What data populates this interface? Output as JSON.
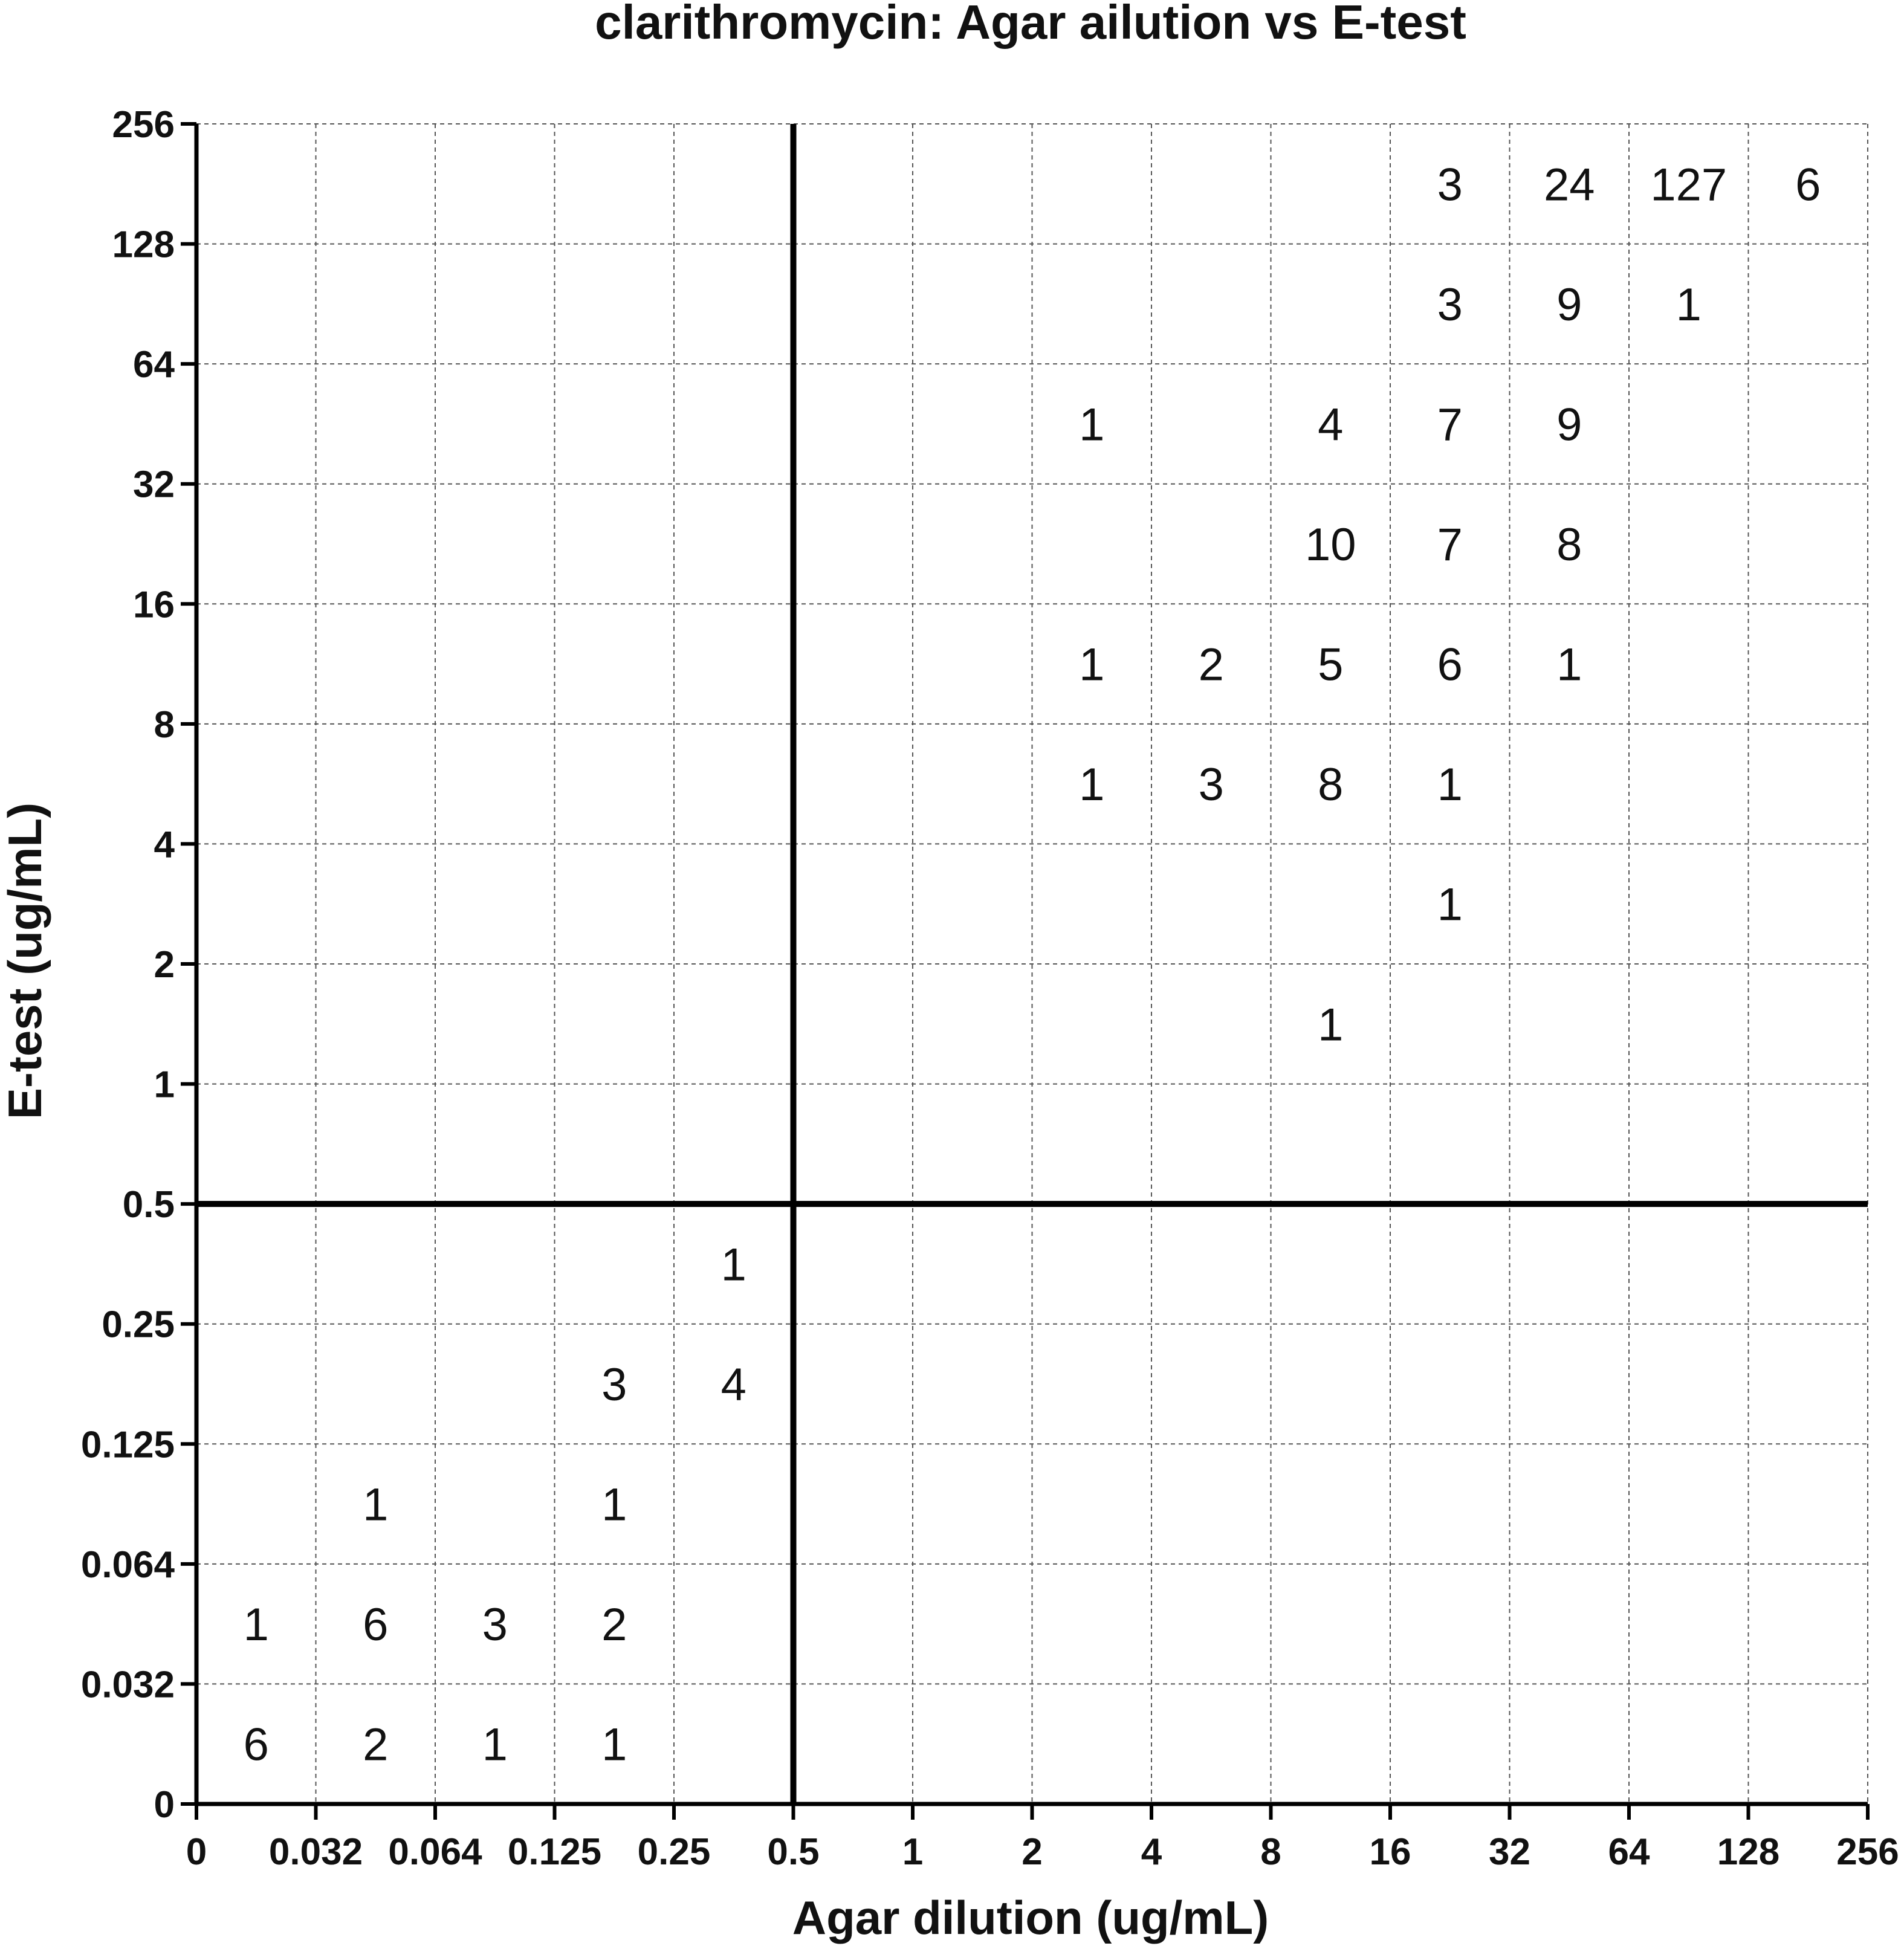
{
  "chart_data": {
    "type": "table",
    "title": "clarithromycin: Agar ailution vs E-test",
    "xlabel": "Agar dilution (ug/mL)",
    "ylabel": "E-test (ug/mL)",
    "x_ticks": [
      "0",
      "0.032",
      "0.064",
      "0.125",
      "0.25",
      "0.5",
      "1",
      "2",
      "4",
      "8",
      "16",
      "32",
      "64",
      "128",
      "256"
    ],
    "y_ticks": [
      "0",
      "0.032",
      "0.064",
      "0.125",
      "0.25",
      "0.5",
      "1",
      "2",
      "4",
      "8",
      "16",
      "32",
      "64",
      "128",
      "256"
    ],
    "grid": true,
    "breakpoint": {
      "x": "0.5",
      "y": "0.5"
    },
    "cells": [
      {
        "x_bin": [
          "0",
          "0.032"
        ],
        "y_bin": [
          "0",
          "0.032"
        ],
        "count": "6"
      },
      {
        "x_bin": [
          "0.032",
          "0.064"
        ],
        "y_bin": [
          "0",
          "0.032"
        ],
        "count": "2"
      },
      {
        "x_bin": [
          "0.064",
          "0.125"
        ],
        "y_bin": [
          "0",
          "0.032"
        ],
        "count": "1"
      },
      {
        "x_bin": [
          "0.125",
          "0.25"
        ],
        "y_bin": [
          "0",
          "0.032"
        ],
        "count": "1"
      },
      {
        "x_bin": [
          "0",
          "0.032"
        ],
        "y_bin": [
          "0.032",
          "0.064"
        ],
        "count": "1"
      },
      {
        "x_bin": [
          "0.032",
          "0.064"
        ],
        "y_bin": [
          "0.032",
          "0.064"
        ],
        "count": "6"
      },
      {
        "x_bin": [
          "0.064",
          "0.125"
        ],
        "y_bin": [
          "0.032",
          "0.064"
        ],
        "count": "3"
      },
      {
        "x_bin": [
          "0.125",
          "0.25"
        ],
        "y_bin": [
          "0.032",
          "0.064"
        ],
        "count": "2"
      },
      {
        "x_bin": [
          "0.032",
          "0.064"
        ],
        "y_bin": [
          "0.064",
          "0.125"
        ],
        "count": "1"
      },
      {
        "x_bin": [
          "0.125",
          "0.25"
        ],
        "y_bin": [
          "0.064",
          "0.125"
        ],
        "count": "1"
      },
      {
        "x_bin": [
          "0.125",
          "0.25"
        ],
        "y_bin": [
          "0.125",
          "0.25"
        ],
        "count": "3"
      },
      {
        "x_bin": [
          "0.25",
          "0.5"
        ],
        "y_bin": [
          "0.125",
          "0.25"
        ],
        "count": "4"
      },
      {
        "x_bin": [
          "0.25",
          "0.5"
        ],
        "y_bin": [
          "0.25",
          "0.5"
        ],
        "count": "1"
      },
      {
        "x_bin": [
          "8",
          "16"
        ],
        "y_bin": [
          "1",
          "2"
        ],
        "count": "1"
      },
      {
        "x_bin": [
          "16",
          "32"
        ],
        "y_bin": [
          "2",
          "4"
        ],
        "count": "1"
      },
      {
        "x_bin": [
          "2",
          "4"
        ],
        "y_bin": [
          "4",
          "8"
        ],
        "count": "1"
      },
      {
        "x_bin": [
          "4",
          "8"
        ],
        "y_bin": [
          "4",
          "8"
        ],
        "count": "3"
      },
      {
        "x_bin": [
          "8",
          "16"
        ],
        "y_bin": [
          "4",
          "8"
        ],
        "count": "8"
      },
      {
        "x_bin": [
          "16",
          "32"
        ],
        "y_bin": [
          "4",
          "8"
        ],
        "count": "1"
      },
      {
        "x_bin": [
          "2",
          "4"
        ],
        "y_bin": [
          "8",
          "16"
        ],
        "count": "1"
      },
      {
        "x_bin": [
          "4",
          "8"
        ],
        "y_bin": [
          "8",
          "16"
        ],
        "count": "2"
      },
      {
        "x_bin": [
          "8",
          "16"
        ],
        "y_bin": [
          "8",
          "16"
        ],
        "count": "5"
      },
      {
        "x_bin": [
          "16",
          "32"
        ],
        "y_bin": [
          "8",
          "16"
        ],
        "count": "6"
      },
      {
        "x_bin": [
          "32",
          "64"
        ],
        "y_bin": [
          "8",
          "16"
        ],
        "count": "1"
      },
      {
        "x_bin": [
          "8",
          "16"
        ],
        "y_bin": [
          "16",
          "32"
        ],
        "count": "10"
      },
      {
        "x_bin": [
          "16",
          "32"
        ],
        "y_bin": [
          "16",
          "32"
        ],
        "count": "7"
      },
      {
        "x_bin": [
          "32",
          "64"
        ],
        "y_bin": [
          "16",
          "32"
        ],
        "count": "8"
      },
      {
        "x_bin": [
          "2",
          "4"
        ],
        "y_bin": [
          "32",
          "64"
        ],
        "count": "1"
      },
      {
        "x_bin": [
          "8",
          "16"
        ],
        "y_bin": [
          "32",
          "64"
        ],
        "count": "4"
      },
      {
        "x_bin": [
          "16",
          "32"
        ],
        "y_bin": [
          "32",
          "64"
        ],
        "count": "7"
      },
      {
        "x_bin": [
          "32",
          "64"
        ],
        "y_bin": [
          "32",
          "64"
        ],
        "count": "9"
      },
      {
        "x_bin": [
          "16",
          "32"
        ],
        "y_bin": [
          "64",
          "128"
        ],
        "count": "3"
      },
      {
        "x_bin": [
          "32",
          "64"
        ],
        "y_bin": [
          "64",
          "128"
        ],
        "count": "9"
      },
      {
        "x_bin": [
          "64",
          "128"
        ],
        "y_bin": [
          "64",
          "128"
        ],
        "count": "1"
      },
      {
        "x_bin": [
          "16",
          "32"
        ],
        "y_bin": [
          "128",
          "256"
        ],
        "count": "3"
      },
      {
        "x_bin": [
          "32",
          "64"
        ],
        "y_bin": [
          "128",
          "256"
        ],
        "count": "24"
      },
      {
        "x_bin": [
          "64",
          "128"
        ],
        "y_bin": [
          "128",
          "256"
        ],
        "count": "127"
      },
      {
        "x_bin": [
          "128",
          "256"
        ],
        "y_bin": [
          "128",
          "256"
        ],
        "count": "6"
      }
    ]
  }
}
